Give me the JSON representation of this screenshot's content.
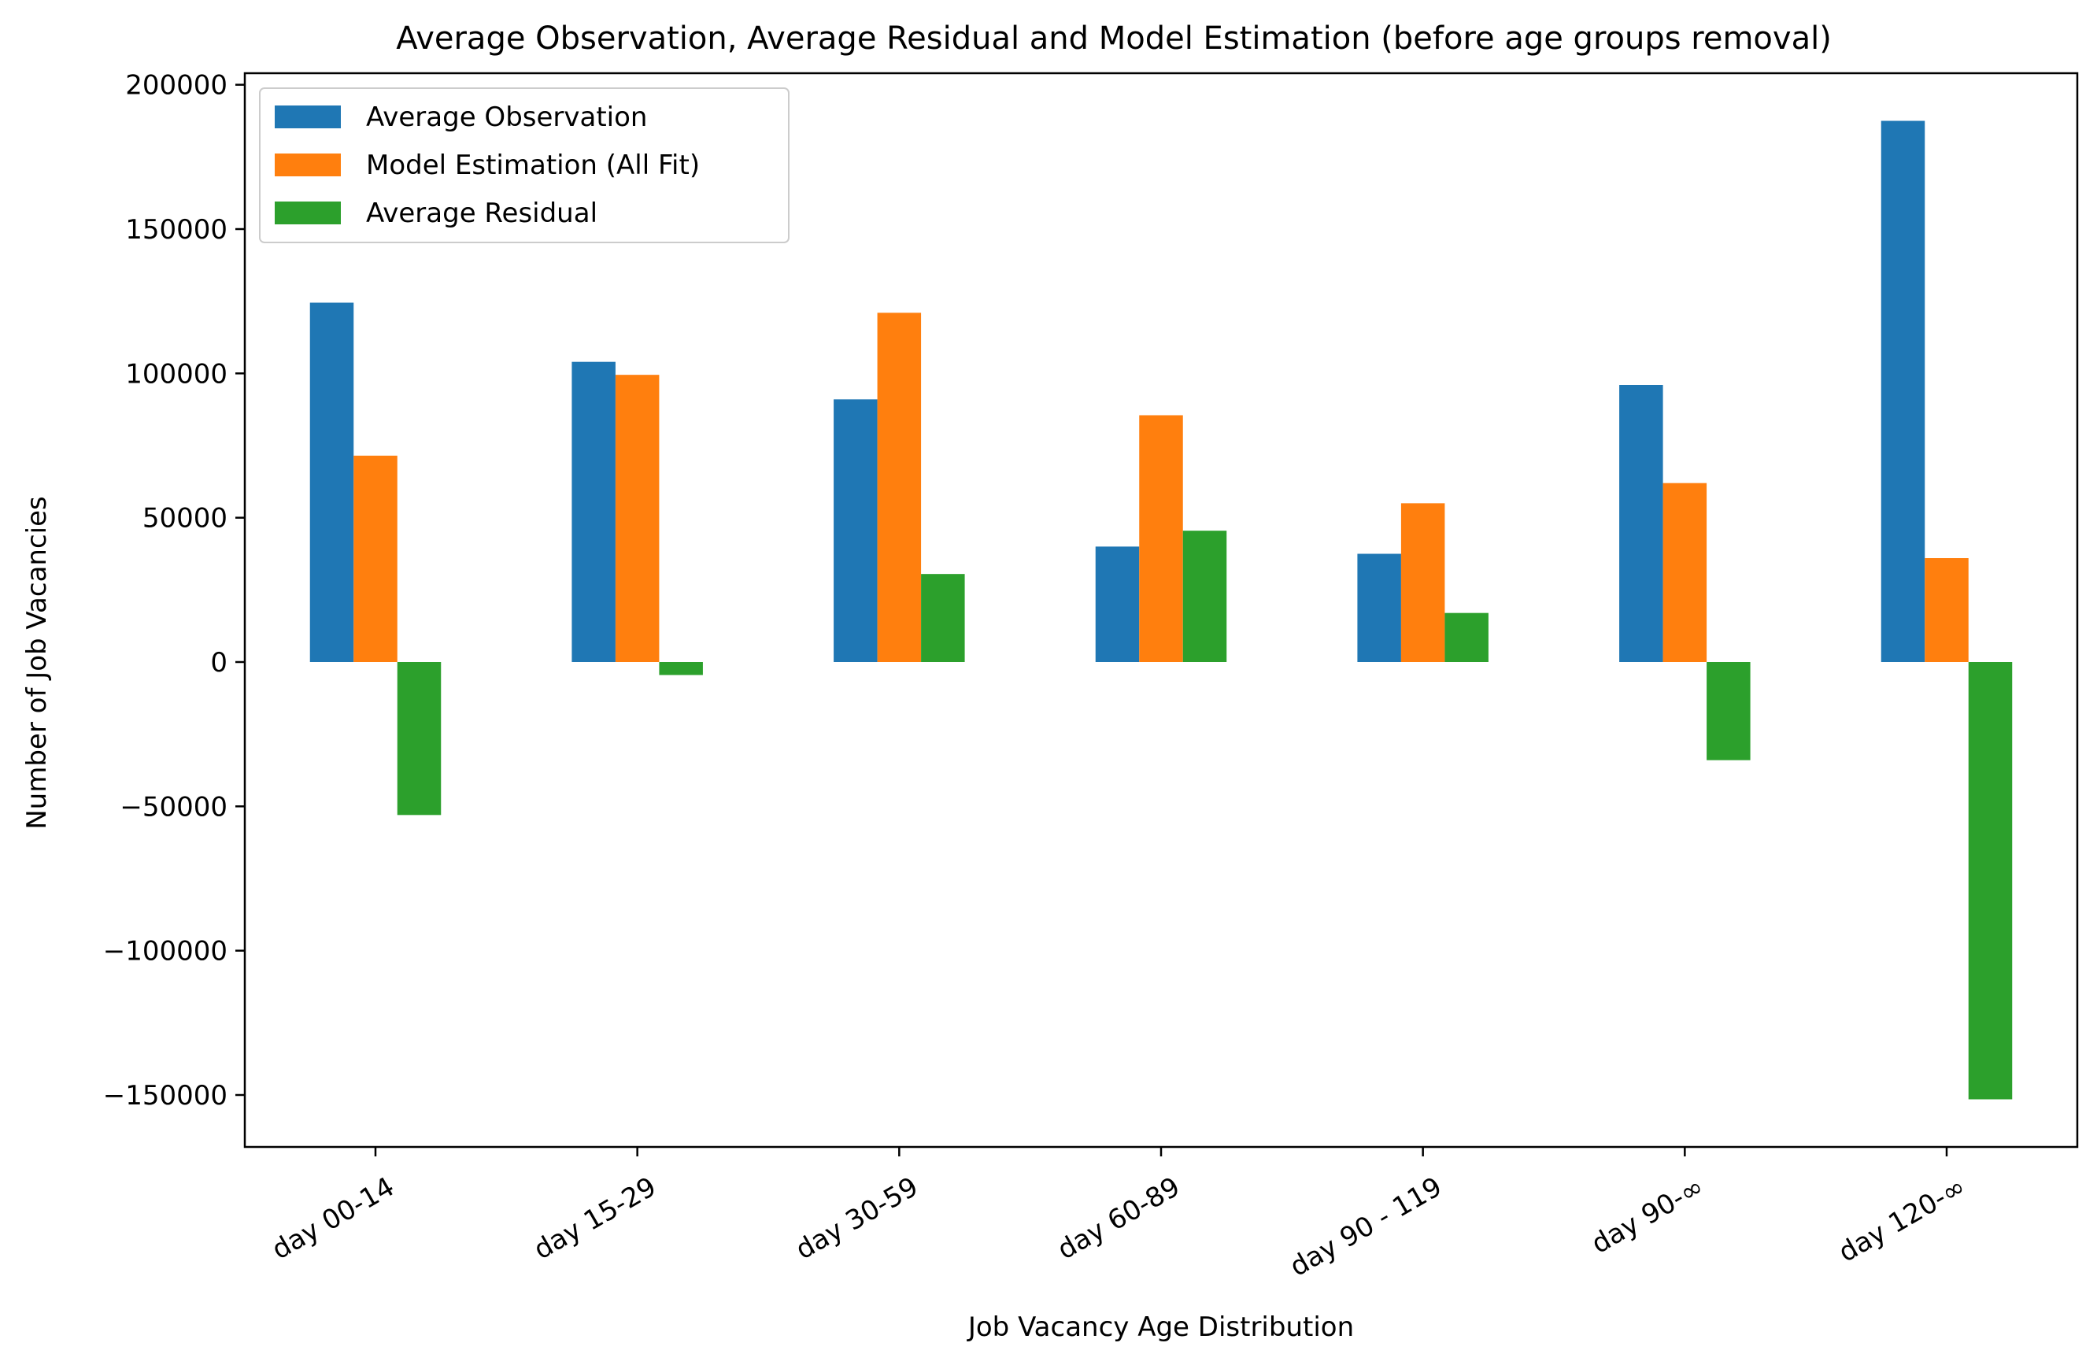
{
  "chart_data": {
    "type": "bar",
    "title": "Average Observation, Average Residual and Model Estimation (before age groups removal)",
    "xlabel": "Job Vacancy Age Distribution",
    "ylabel": "Number of Job Vacancies",
    "categories": [
      "day 00-14",
      "day 15-29",
      "day 30-59",
      "day 60-89",
      "day 90 - 119",
      "day 90-∞",
      "day 120-∞"
    ],
    "yticks": [
      -150000,
      -100000,
      -50000,
      0,
      50000,
      100000,
      150000,
      200000
    ],
    "ytick_labels": [
      "−150000",
      "−100000",
      "−50000",
      "0",
      "50000",
      "100000",
      "150000",
      "200000"
    ],
    "ylim": [
      -168000,
      204000
    ],
    "xtick_rotation": 30,
    "grid": false,
    "legend_position": "top-left",
    "series": [
      {
        "name": "Average Observation",
        "color": "#1f77b4",
        "values": [
          124500,
          104000,
          91000,
          40000,
          37500,
          96000,
          187500
        ]
      },
      {
        "name": "Model Estimation (All Fit)",
        "color": "#ff7f0e",
        "values": [
          71500,
          99500,
          121000,
          85500,
          55000,
          62000,
          36000
        ]
      },
      {
        "name": "Average Residual",
        "color": "#2ca02c",
        "values": [
          -53000,
          -4500,
          30500,
          45500,
          17000,
          -34000,
          -151500
        ]
      }
    ]
  }
}
